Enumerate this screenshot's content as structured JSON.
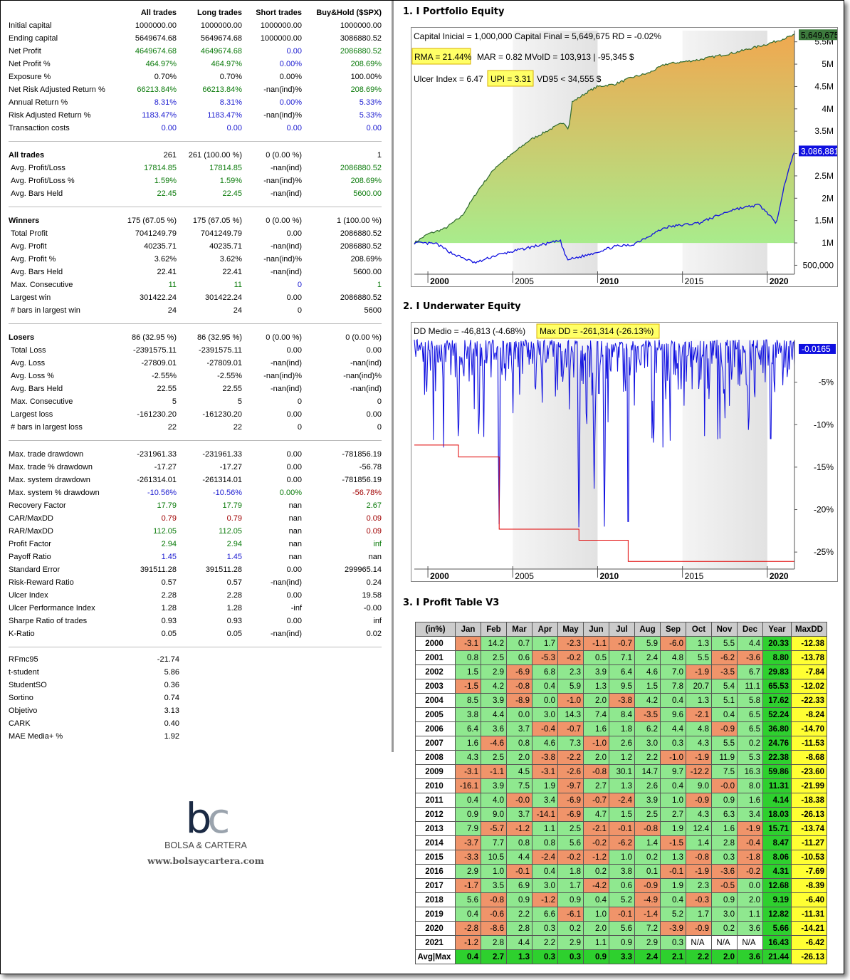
{
  "stats": {
    "header": [
      "",
      "All trades",
      "Long trades",
      "Short trades",
      "Buy&Hold ($SPX)"
    ],
    "blocks": [
      [
        [
          "Initial capital",
          "1000000.00",
          "1000000.00",
          "1000000.00",
          "1000000.00",
          ""
        ],
        [
          "Ending capital",
          "5649674.68",
          "5649674.68",
          "1000000.00",
          "3086880.52",
          ""
        ],
        [
          "Net Profit",
          "4649674.68",
          "4649674.68",
          "0.00",
          "2086880.52",
          "ggbg"
        ],
        [
          "Net Profit %",
          "464.97%",
          "464.97%",
          "0.00%",
          "208.69%",
          "ggbg"
        ],
        [
          "Exposure %",
          "0.70%",
          "0.70%",
          "0.00%",
          "100.00%",
          ""
        ],
        [
          "Net Risk Adjusted Return %",
          "66213.84%",
          "66213.84%",
          "-nan(ind)%",
          "208.69%",
          "gg g"
        ],
        [
          "Annual Return %",
          "8.31%",
          "8.31%",
          "0.00%",
          "5.33%",
          "bbbb"
        ],
        [
          "Risk Adjusted Return %",
          "1183.47%",
          "1183.47%",
          "-nan(ind)%",
          "5.33%",
          "bb b"
        ],
        [
          "Transaction costs",
          "0.00",
          "0.00",
          "0.00",
          "0.00",
          "bbbb"
        ]
      ],
      [
        [
          "All trades",
          "261",
          "261 (100.00 %)",
          "0 (0.00 %)",
          "1",
          "H"
        ],
        [
          "Avg. Profit/Loss",
          "17814.85",
          "17814.85",
          "-nan(ind)",
          "2086880.52",
          "gg g"
        ],
        [
          "Avg. Profit/Loss %",
          "1.59%",
          "1.59%",
          "-nan(ind)%",
          "208.69%",
          "gg g"
        ],
        [
          "Avg. Bars Held",
          "22.45",
          "22.45",
          "-nan(ind)",
          "5600.00",
          "gg g"
        ]
      ],
      [
        [
          "Winners",
          "175 (67.05 %)",
          "175 (67.05 %)",
          "0 (0.00 %)",
          "1 (100.00 %)",
          "H"
        ],
        [
          "Total Profit",
          "7041249.79",
          "7041249.79",
          "0.00",
          "2086880.52",
          ""
        ],
        [
          "Avg. Profit",
          "40235.71",
          "40235.71",
          "-nan(ind)",
          "2086880.52",
          ""
        ],
        [
          "Avg. Profit %",
          "3.62%",
          "3.62%",
          "-nan(ind)%",
          "208.69%",
          ""
        ],
        [
          "Avg. Bars Held",
          "22.41",
          "22.41",
          "-nan(ind)",
          "5600.00",
          ""
        ],
        [
          "Max. Consecutive",
          "11",
          "11",
          "0",
          "1",
          "ggbg"
        ],
        [
          "Largest win",
          "301422.24",
          "301422.24",
          "0.00",
          "2086880.52",
          ""
        ],
        [
          "# bars in largest win",
          "24",
          "24",
          "0",
          "5600",
          ""
        ]
      ],
      [
        [
          "Losers",
          "86 (32.95 %)",
          "86 (32.95 %)",
          "0 (0.00 %)",
          "0 (0.00 %)",
          "H"
        ],
        [
          "Total Loss",
          "-2391575.11",
          "-2391575.11",
          "0.00",
          "0.00",
          ""
        ],
        [
          "Avg. Loss",
          "-27809.01",
          "-27809.01",
          "-nan(ind)",
          "-nan(ind)",
          ""
        ],
        [
          "Avg. Loss %",
          "-2.55%",
          "-2.55%",
          "-nan(ind)%",
          "-nan(ind)%",
          ""
        ],
        [
          "Avg. Bars Held",
          "22.55",
          "22.55",
          "-nan(ind)",
          "-nan(ind)",
          ""
        ],
        [
          "Max. Consecutive",
          "5",
          "5",
          "0",
          "0",
          ""
        ],
        [
          "Largest loss",
          "-161230.20",
          "-161230.20",
          "0.00",
          "0.00",
          ""
        ],
        [
          "# bars in largest loss",
          "22",
          "22",
          "0",
          "0",
          ""
        ]
      ],
      [
        [
          "Max. trade drawdown",
          "-231961.33",
          "-231961.33",
          "0.00",
          "-781856.19",
          ""
        ],
        [
          "Max. trade % drawdown",
          "-17.27",
          "-17.27",
          "0.00",
          "-56.78",
          ""
        ],
        [
          "Max. system drawdown",
          "-261314.01",
          "-261314.01",
          "0.00",
          "-781856.19",
          ""
        ],
        [
          "Max. system % drawdown",
          "-10.56%",
          "-10.56%",
          "0.00%",
          "-56.78%",
          "bbgr"
        ],
        [
          "Recovery Factor",
          "17.79",
          "17.79",
          "nan",
          "2.67",
          "gg g"
        ],
        [
          "CAR/MaxDD",
          "0.79",
          "0.79",
          "nan",
          "0.09",
          "rr r"
        ],
        [
          "RAR/MaxDD",
          "112.05",
          "112.05",
          "nan",
          "0.09",
          "gg r"
        ],
        [
          "Profit Factor",
          "2.94",
          "2.94",
          "nan",
          "inf",
          "gg g"
        ],
        [
          "Payoff Ratio",
          "1.45",
          "1.45",
          "nan",
          "nan",
          "bb  "
        ],
        [
          "Standard Error",
          "391511.28",
          "391511.28",
          "0.00",
          "299965.14",
          ""
        ],
        [
          "Risk-Reward Ratio",
          "0.57",
          "0.57",
          "-nan(ind)",
          "0.24",
          ""
        ],
        [
          "Ulcer Index",
          "2.28",
          "2.28",
          "0.00",
          "19.58",
          ""
        ],
        [
          "Ulcer Performance Index",
          "1.28",
          "1.28",
          "-inf",
          "-0.00",
          ""
        ],
        [
          "Sharpe Ratio of trades",
          "0.93",
          "0.93",
          "0.00",
          "inf",
          ""
        ],
        [
          "K-Ratio",
          "0.05",
          "0.05",
          "-nan(ind)",
          "0.02",
          ""
        ]
      ]
    ],
    "extra": [
      [
        "RFmc95",
        "-21.74"
      ],
      [
        "t-student",
        "5.86"
      ],
      [
        "StudentSO",
        "0.36"
      ],
      [
        "Sortino",
        "0.74"
      ],
      [
        "Objetivo",
        "3.13"
      ],
      [
        "CARK",
        "0.40"
      ],
      [
        "MAE Media+ %",
        "1.92"
      ]
    ]
  },
  "logo": {
    "mark_b": "b",
    "mark_c": "c",
    "name": "BOLSA & CARTERA",
    "url": "www.bolsaycartera.com"
  },
  "sections": {
    "equity_title": "1. I Portfolio Equity",
    "underwater_title": "2. I Underwater Equity",
    "profit_title": "3. I Profit Table V3"
  },
  "equity": {
    "line1": "Capital Inicial = 1,000,000  Capital Final = 5,649,675  RD = -0.02%",
    "rma": "RMA = 21.44%",
    "line2": "MAR = 0.82  MVoID = 103,913 | -95,345 $",
    "ulcer": "Ulcer Index = 6.47",
    "upi": "UPI = 3.31",
    "vd": "VD95 < 34,555 $",
    "final_label": "5,649,675",
    "bh_label": "3,086,881",
    "y_ticks": [
      "5.5M",
      "5M",
      "4.5M",
      "4M",
      "3.5M",
      "3M",
      "2.5M",
      "2M",
      "1.5M",
      "1M",
      "500,000"
    ],
    "x_ticks": [
      "2000",
      "2005",
      "2010",
      "2015",
      "2020"
    ],
    "colors": {
      "equity_top": "#f0a850",
      "equity_bottom": "#a8ec8c",
      "line": "#2e6a2e",
      "bh": "#1010e0",
      "highlight": "#ffff66"
    }
  },
  "underwater": {
    "dd_medio": "DD Medio = -46,813 (-4.68%)",
    "max_dd": "Max DD = -261,314 (-26.13%)",
    "last_label": "-0.0165",
    "y_ticks": [
      "-5%",
      "-10%",
      "-15%",
      "-20%",
      "-25%"
    ],
    "x_ticks": [
      "2000",
      "2005",
      "2010",
      "2015",
      "2020"
    ],
    "colors": {
      "line": "#1010e0",
      "maxline": "#e00000"
    }
  },
  "profit_table": {
    "header": [
      "(in%)",
      "Jan",
      "Feb",
      "Mar",
      "Apr",
      "May",
      "Jun",
      "Jul",
      "Aug",
      "Sep",
      "Oct",
      "Nov",
      "Dec",
      "Year",
      "MaxDD"
    ],
    "rows": [
      [
        "2000",
        "-3.1",
        "14.2",
        "0.7",
        "1.7",
        "-2.3",
        "-1.1",
        "-0.7",
        "5.9",
        "-6.0",
        "1.3",
        "5.5",
        "4.4",
        "20.33",
        "-12.38"
      ],
      [
        "2001",
        "0.8",
        "2.5",
        "0.6",
        "-5.3",
        "-0.2",
        "0.5",
        "7.1",
        "2.4",
        "4.8",
        "5.5",
        "-6.2",
        "-3.6",
        "8.80",
        "-13.78"
      ],
      [
        "2002",
        "1.5",
        "2.9",
        "-6.9",
        "6.8",
        "2.3",
        "3.9",
        "6.4",
        "4.6",
        "7.0",
        "-1.9",
        "-3.5",
        "6.7",
        "29.83",
        "-7.84"
      ],
      [
        "2003",
        "-1.5",
        "4.2",
        "-0.8",
        "0.4",
        "5.9",
        "1.3",
        "9.5",
        "1.5",
        "7.8",
        "20.7",
        "5.4",
        "11.1",
        "65.53",
        "-12.02"
      ],
      [
        "2004",
        "8.5",
        "3.9",
        "-8.9",
        "0.0",
        "-1.0",
        "2.0",
        "-3.8",
        "4.2",
        "0.4",
        "1.3",
        "5.1",
        "5.8",
        "17.62",
        "-22.33"
      ],
      [
        "2005",
        "3.8",
        "4.4",
        "0.0",
        "3.0",
        "14.3",
        "7.4",
        "8.4",
        "-3.5",
        "9.6",
        "-2.1",
        "0.4",
        "6.5",
        "52.24",
        "-8.24"
      ],
      [
        "2006",
        "6.4",
        "3.6",
        "3.7",
        "-0.4",
        "-0.7",
        "1.6",
        "1.8",
        "6.2",
        "4.4",
        "4.8",
        "-0.9",
        "6.5",
        "36.80",
        "-14.70"
      ],
      [
        "2007",
        "1.6",
        "-4.6",
        "0.8",
        "4.6",
        "7.3",
        "-1.0",
        "2.6",
        "3.0",
        "0.3",
        "4.3",
        "5.5",
        "0.2",
        "24.76",
        "-11.53"
      ],
      [
        "2008",
        "4.3",
        "2.5",
        "2.0",
        "-3.8",
        "-2.2",
        "2.0",
        "1.2",
        "2.2",
        "-1.0",
        "-1.9",
        "11.9",
        "5.3",
        "22.38",
        "-8.68"
      ],
      [
        "2009",
        "-3.1",
        "-1.1",
        "4.5",
        "-3.1",
        "-2.6",
        "-0.8",
        "30.1",
        "14.7",
        "9.7",
        "-12.2",
        "7.5",
        "16.3",
        "59.86",
        "-23.60"
      ],
      [
        "2010",
        "-16.1",
        "3.9",
        "7.5",
        "1.9",
        "-9.7",
        "2.7",
        "1.3",
        "2.6",
        "0.4",
        "9.0",
        "-0.0",
        "8.0",
        "11.31",
        "-21.99"
      ],
      [
        "2011",
        "0.4",
        "4.0",
        "-0.0",
        "3.4",
        "-6.9",
        "-0.7",
        "-2.4",
        "3.9",
        "1.0",
        "-0.9",
        "0.9",
        "1.6",
        "4.14",
        "-18.38"
      ],
      [
        "2012",
        "0.9",
        "9.0",
        "3.7",
        "-14.1",
        "-6.9",
        "4.7",
        "1.5",
        "2.5",
        "2.7",
        "4.3",
        "6.3",
        "3.4",
        "18.03",
        "-26.13"
      ],
      [
        "2013",
        "7.9",
        "-5.7",
        "-1.2",
        "1.1",
        "2.5",
        "-2.1",
        "-0.1",
        "-0.8",
        "1.9",
        "12.4",
        "1.6",
        "-1.9",
        "15.71",
        "-13.74"
      ],
      [
        "2014",
        "-3.7",
        "7.7",
        "0.8",
        "0.8",
        "5.6",
        "-0.2",
        "-6.2",
        "1.4",
        "-1.5",
        "1.4",
        "2.8",
        "-0.4",
        "8.47",
        "-11.27"
      ],
      [
        "2015",
        "-3.3",
        "10.5",
        "4.4",
        "-2.4",
        "-0.2",
        "-1.2",
        "1.0",
        "0.2",
        "1.3",
        "-0.8",
        "0.3",
        "-1.8",
        "8.06",
        "-10.53"
      ],
      [
        "2016",
        "2.9",
        "1.0",
        "-0.1",
        "0.4",
        "1.8",
        "0.2",
        "3.8",
        "0.1",
        "-0.1",
        "-1.9",
        "-3.6",
        "-0.2",
        "4.31",
        "-7.69"
      ],
      [
        "2017",
        "-1.7",
        "3.5",
        "6.9",
        "3.0",
        "1.7",
        "-4.2",
        "0.6",
        "-0.9",
        "1.9",
        "2.3",
        "-0.5",
        "0.0",
        "12.68",
        "-8.39"
      ],
      [
        "2018",
        "5.6",
        "-0.8",
        "0.9",
        "-1.2",
        "0.9",
        "0.4",
        "5.2",
        "-4.9",
        "0.4",
        "-0.3",
        "0.9",
        "2.0",
        "9.19",
        "-6.40"
      ],
      [
        "2019",
        "0.4",
        "-0.6",
        "2.2",
        "6.6",
        "-6.1",
        "1.0",
        "-0.1",
        "-1.4",
        "5.2",
        "1.7",
        "3.0",
        "1.1",
        "12.82",
        "-11.31"
      ],
      [
        "2020",
        "-2.8",
        "-8.6",
        "2.8",
        "0.3",
        "0.2",
        "2.0",
        "5.6",
        "7.2",
        "-3.9",
        "-0.9",
        "0.2",
        "3.6",
        "5.66",
        "-14.21"
      ],
      [
        "2021",
        "-1.2",
        "2.8",
        "4.4",
        "2.2",
        "2.9",
        "1.1",
        "0.9",
        "2.9",
        "0.3",
        "N/A",
        "N/A",
        "N/A",
        "16.43",
        "-6.42"
      ]
    ],
    "avg_row": [
      "Avg|Max",
      "0.4",
      "2.7",
      "1.3",
      "0.3",
      "0.3",
      "0.9",
      "3.3",
      "2.4",
      "2.1",
      "2.2",
      "2.0",
      "3.6",
      "21.44",
      "-26.13"
    ]
  }
}
